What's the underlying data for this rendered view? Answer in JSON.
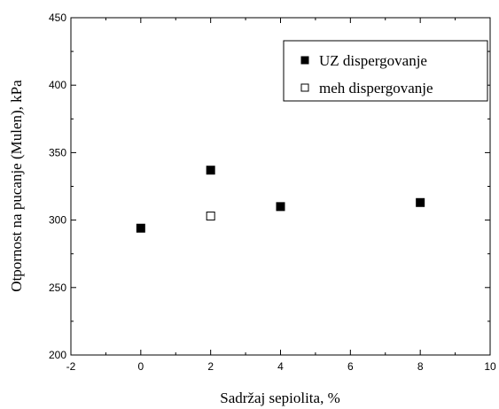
{
  "chart_data": {
    "type": "scatter",
    "xlabel": "Sadržaj sepiolita, %",
    "ylabel": "Otpornost na pucanje (Mulen), kPa",
    "xlim": [
      -2,
      10
    ],
    "ylim": [
      200,
      450
    ],
    "xticks": [
      -2,
      0,
      2,
      4,
      6,
      8,
      10
    ],
    "yticks": [
      200,
      250,
      300,
      350,
      400,
      450
    ],
    "grid": false,
    "legend_position": "top-right",
    "series": [
      {
        "name": "UZ dispergovanje",
        "marker": "filled-square",
        "color": "#000000",
        "points": [
          {
            "x": 0,
            "y": 294
          },
          {
            "x": 2,
            "y": 337
          },
          {
            "x": 4,
            "y": 310
          },
          {
            "x": 8,
            "y": 313
          }
        ]
      },
      {
        "name": "meh dispergovanje",
        "marker": "open-square",
        "color": "#000000",
        "points": [
          {
            "x": 2,
            "y": 303
          }
        ]
      }
    ]
  }
}
